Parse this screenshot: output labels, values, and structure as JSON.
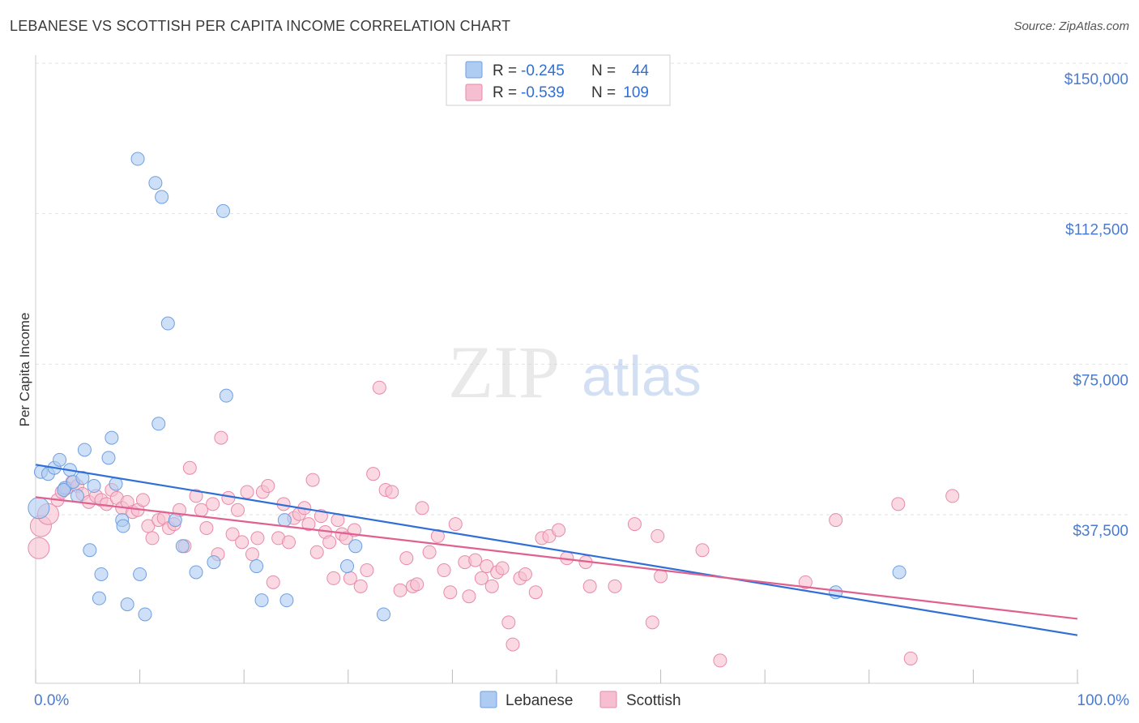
{
  "title": "LEBANESE VS SCOTTISH PER CAPITA INCOME CORRELATION CHART",
  "source": "Source: ZipAtlas.com",
  "watermark": {
    "zip": "ZIP",
    "atlas": "atlas"
  },
  "colors": {
    "lebanese_fill": "#aecbf2",
    "lebanese_stroke": "#6f9fe0",
    "lebanese_line": "#2f6fd6",
    "scottish_fill": "#f6bfd1",
    "scottish_stroke": "#e88aab",
    "scottish_line": "#e0608f",
    "axis_label": "#4a7bd0",
    "grid": "#dcdcdc"
  },
  "legend": {
    "rows": [
      {
        "r_label": "R = ",
        "r_value": "-0.245",
        "n_label": "N = ",
        "n_value": "44"
      },
      {
        "r_label": "R = ",
        "r_value": "-0.539",
        "n_label": "N = ",
        "n_value": "109"
      }
    ]
  },
  "chart_data": {
    "type": "scatter",
    "title": "LEBANESE VS SCOTTISH PER CAPITA INCOME CORRELATION CHART",
    "xlabel": "",
    "ylabel": "Per Capita Income",
    "xlim": [
      0,
      100
    ],
    "ylim": [
      0,
      155000
    ],
    "x_tick_labels": [
      "0.0%",
      "100.0%"
    ],
    "y_ticks": [
      37500,
      75000,
      112500,
      150000
    ],
    "y_tick_labels": [
      "$37,500",
      "$75,000",
      "$112,500",
      "$150,000"
    ],
    "grid": true,
    "legend_position": "top-center",
    "series": [
      {
        "name": "Lebanese",
        "r": -0.245,
        "n": 44,
        "trend": {
          "x": [
            0,
            100
          ],
          "y": [
            53800,
            11300
          ]
        },
        "points": [
          {
            "x": 0.3,
            "y": 43000,
            "big": true
          },
          {
            "x": 0.5,
            "y": 52000
          },
          {
            "x": 1.2,
            "y": 51500
          },
          {
            "x": 1.8,
            "y": 53000
          },
          {
            "x": 2.3,
            "y": 55000
          },
          {
            "x": 2.8,
            "y": 48000
          },
          {
            "x": 3.3,
            "y": 52500
          },
          {
            "x": 3.6,
            "y": 49500
          },
          {
            "x": 4.0,
            "y": 46000
          },
          {
            "x": 4.5,
            "y": 50500
          },
          {
            "x": 4.7,
            "y": 57500
          },
          {
            "x": 5.2,
            "y": 32500
          },
          {
            "x": 5.6,
            "y": 48500
          },
          {
            "x": 6.3,
            "y": 26500
          },
          {
            "x": 6.1,
            "y": 20500
          },
          {
            "x": 7.0,
            "y": 55500
          },
          {
            "x": 7.3,
            "y": 60500
          },
          {
            "x": 7.7,
            "y": 49000
          },
          {
            "x": 8.3,
            "y": 40000
          },
          {
            "x": 8.4,
            "y": 38500
          },
          {
            "x": 8.8,
            "y": 19000
          },
          {
            "x": 9.8,
            "y": 130000
          },
          {
            "x": 10.0,
            "y": 26500
          },
          {
            "x": 10.5,
            "y": 16500
          },
          {
            "x": 11.5,
            "y": 124000
          },
          {
            "x": 11.8,
            "y": 64000
          },
          {
            "x": 12.1,
            "y": 120500
          },
          {
            "x": 12.7,
            "y": 89000
          },
          {
            "x": 13.4,
            "y": 40000
          },
          {
            "x": 14.1,
            "y": 33500
          },
          {
            "x": 15.4,
            "y": 27000
          },
          {
            "x": 17.1,
            "y": 29500
          },
          {
            "x": 18.0,
            "y": 117000
          },
          {
            "x": 18.3,
            "y": 71000
          },
          {
            "x": 21.2,
            "y": 28500
          },
          {
            "x": 21.7,
            "y": 20000
          },
          {
            "x": 23.9,
            "y": 40000
          },
          {
            "x": 24.1,
            "y": 20000
          },
          {
            "x": 29.9,
            "y": 28500
          },
          {
            "x": 30.7,
            "y": 33500
          },
          {
            "x": 33.4,
            "y": 16500
          },
          {
            "x": 76.8,
            "y": 22000
          },
          {
            "x": 82.9,
            "y": 27000
          },
          {
            "x": 2.7,
            "y": 47500
          }
        ]
      },
      {
        "name": "Scottish",
        "r": -0.539,
        "n": 109,
        "trend": {
          "x": [
            0,
            100
          ],
          "y": [
            45700,
            15400
          ]
        },
        "points": [
          {
            "x": 0.3,
            "y": 33000,
            "big": true
          },
          {
            "x": 0.5,
            "y": 38500,
            "big": true
          },
          {
            "x": 1.2,
            "y": 41500,
            "big": true
          },
          {
            "x": 2.1,
            "y": 45000
          },
          {
            "x": 2.5,
            "y": 47000
          },
          {
            "x": 3.0,
            "y": 48000
          },
          {
            "x": 3.5,
            "y": 49500
          },
          {
            "x": 4.0,
            "y": 48500
          },
          {
            "x": 4.5,
            "y": 46500
          },
          {
            "x": 5.1,
            "y": 44500
          },
          {
            "x": 5.8,
            "y": 46000
          },
          {
            "x": 6.3,
            "y": 45000
          },
          {
            "x": 6.8,
            "y": 44000
          },
          {
            "x": 7.3,
            "y": 47500
          },
          {
            "x": 7.8,
            "y": 45500
          },
          {
            "x": 8.3,
            "y": 43000
          },
          {
            "x": 8.8,
            "y": 44500
          },
          {
            "x": 9.3,
            "y": 42000
          },
          {
            "x": 9.8,
            "y": 42500
          },
          {
            "x": 10.3,
            "y": 45000
          },
          {
            "x": 10.8,
            "y": 38500
          },
          {
            "x": 11.2,
            "y": 35500
          },
          {
            "x": 11.8,
            "y": 40000
          },
          {
            "x": 12.3,
            "y": 40500
          },
          {
            "x": 12.8,
            "y": 38000
          },
          {
            "x": 13.3,
            "y": 39000
          },
          {
            "x": 13.8,
            "y": 42500
          },
          {
            "x": 14.3,
            "y": 33500
          },
          {
            "x": 14.8,
            "y": 53000
          },
          {
            "x": 15.4,
            "y": 46000
          },
          {
            "x": 15.9,
            "y": 42500
          },
          {
            "x": 16.4,
            "y": 38000
          },
          {
            "x": 17.0,
            "y": 44000
          },
          {
            "x": 17.5,
            "y": 31500
          },
          {
            "x": 17.8,
            "y": 60500
          },
          {
            "x": 18.5,
            "y": 45500
          },
          {
            "x": 18.9,
            "y": 36500
          },
          {
            "x": 19.4,
            "y": 42500
          },
          {
            "x": 19.8,
            "y": 34500
          },
          {
            "x": 20.3,
            "y": 47000
          },
          {
            "x": 20.8,
            "y": 31500
          },
          {
            "x": 21.3,
            "y": 35500
          },
          {
            "x": 21.8,
            "y": 47000
          },
          {
            "x": 22.3,
            "y": 48500
          },
          {
            "x": 22.8,
            "y": 24500
          },
          {
            "x": 23.3,
            "y": 35500
          },
          {
            "x": 23.8,
            "y": 44000
          },
          {
            "x": 24.3,
            "y": 34500
          },
          {
            "x": 24.8,
            "y": 40500
          },
          {
            "x": 25.3,
            "y": 41500
          },
          {
            "x": 25.8,
            "y": 43000
          },
          {
            "x": 26.2,
            "y": 39000
          },
          {
            "x": 26.6,
            "y": 50000
          },
          {
            "x": 27.0,
            "y": 32000
          },
          {
            "x": 27.4,
            "y": 41000
          },
          {
            "x": 27.8,
            "y": 37000
          },
          {
            "x": 28.2,
            "y": 34500
          },
          {
            "x": 28.6,
            "y": 25500
          },
          {
            "x": 29.0,
            "y": 40000
          },
          {
            "x": 29.4,
            "y": 36500
          },
          {
            "x": 29.8,
            "y": 35500
          },
          {
            "x": 30.2,
            "y": 25500
          },
          {
            "x": 30.6,
            "y": 37500
          },
          {
            "x": 31.2,
            "y": 23500
          },
          {
            "x": 31.8,
            "y": 27500
          },
          {
            "x": 32.4,
            "y": 51500
          },
          {
            "x": 33.0,
            "y": 73000
          },
          {
            "x": 33.6,
            "y": 47500
          },
          {
            "x": 34.2,
            "y": 47000
          },
          {
            "x": 35.0,
            "y": 22500
          },
          {
            "x": 35.6,
            "y": 30500
          },
          {
            "x": 36.2,
            "y": 23500
          },
          {
            "x": 36.6,
            "y": 24000
          },
          {
            "x": 37.1,
            "y": 43000
          },
          {
            "x": 37.8,
            "y": 32000
          },
          {
            "x": 38.6,
            "y": 36000
          },
          {
            "x": 39.2,
            "y": 27500
          },
          {
            "x": 39.8,
            "y": 22000
          },
          {
            "x": 40.3,
            "y": 39000
          },
          {
            "x": 41.2,
            "y": 29500
          },
          {
            "x": 41.6,
            "y": 21000
          },
          {
            "x": 42.2,
            "y": 30000
          },
          {
            "x": 42.8,
            "y": 25500
          },
          {
            "x": 43.3,
            "y": 28500
          },
          {
            "x": 43.8,
            "y": 23500
          },
          {
            "x": 44.3,
            "y": 27000
          },
          {
            "x": 44.8,
            "y": 28000
          },
          {
            "x": 45.4,
            "y": 14500
          },
          {
            "x": 45.8,
            "y": 9000
          },
          {
            "x": 46.5,
            "y": 25500
          },
          {
            "x": 47.0,
            "y": 26500
          },
          {
            "x": 48.0,
            "y": 22000
          },
          {
            "x": 48.6,
            "y": 35500
          },
          {
            "x": 49.3,
            "y": 36000
          },
          {
            "x": 50.2,
            "y": 37500
          },
          {
            "x": 51.0,
            "y": 30500
          },
          {
            "x": 52.8,
            "y": 29500
          },
          {
            "x": 53.2,
            "y": 23500
          },
          {
            "x": 55.6,
            "y": 23500
          },
          {
            "x": 57.5,
            "y": 39000
          },
          {
            "x": 59.7,
            "y": 36000
          },
          {
            "x": 59.2,
            "y": 14500
          },
          {
            "x": 65.7,
            "y": 5000
          },
          {
            "x": 64.0,
            "y": 32500
          },
          {
            "x": 60.0,
            "y": 26000
          },
          {
            "x": 73.9,
            "y": 24500
          },
          {
            "x": 76.8,
            "y": 40000
          },
          {
            "x": 82.8,
            "y": 44000
          },
          {
            "x": 84.0,
            "y": 5500
          },
          {
            "x": 88.0,
            "y": 46000
          }
        ]
      }
    ]
  }
}
